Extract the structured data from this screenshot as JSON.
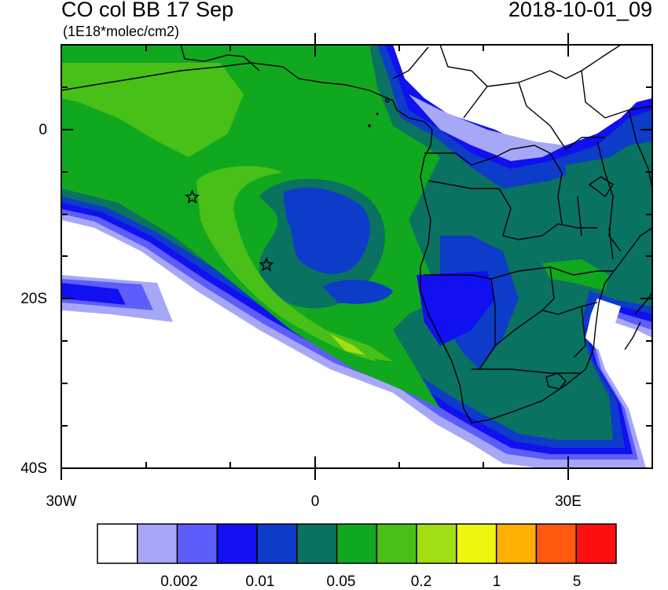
{
  "header": {
    "title": "CO col BB 17 Sep",
    "units": "(1E18*molec/cm2)",
    "datetime": "2018-10-01_09"
  },
  "axes": {
    "y_labels": [
      "0",
      "20S",
      "40S"
    ],
    "x_labels": [
      "30W",
      "0",
      "30E"
    ],
    "lon_range": [
      -30,
      40
    ],
    "lat_range": [
      10,
      -40
    ]
  },
  "legend": {
    "colors": [
      "#ffffff",
      "#a7a7f8",
      "#5d5dfa",
      "#1010f0",
      "#0d3cc8",
      "#0a7260",
      "#10a81e",
      "#48c018",
      "#a2de14",
      "#eef60f",
      "#ffb000",
      "#ff5a10",
      "#ff1010"
    ],
    "labels": [
      "0.002",
      "0.01",
      "0.05",
      "0.2",
      "1",
      "5"
    ]
  },
  "markers": [
    {
      "name": "star",
      "lon": -14.5,
      "lat": -8
    },
    {
      "name": "star",
      "lon": -5.7,
      "lat": -16
    }
  ]
}
